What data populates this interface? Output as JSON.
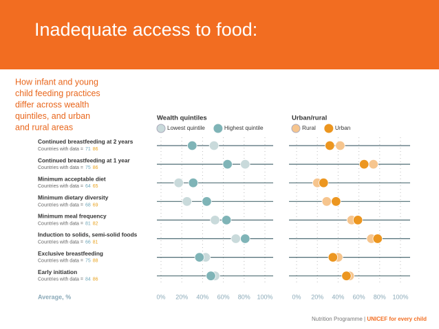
{
  "chart_data": {
    "type": "dot",
    "title": "Inadequate access to food:",
    "subtitle": [
      "How infant and young",
      "child feeding practices",
      "differ across wealth",
      "quintiles, and urban",
      "and rural areas"
    ],
    "categories": [
      "Continued breastfeeding at 2 years",
      "Continued breastfeeding at 1 year",
      "Minimum acceptable diet",
      "Minimum dietary diversity",
      "Minimum meal frequency",
      "Induction to solids, semi-solid foods",
      "Exclusive breastfeeding",
      "Early initiation"
    ],
    "countries_label": "Countries with data =",
    "countries": [
      [
        71,
        86
      ],
      [
        75,
        86
      ],
      [
        64,
        65
      ],
      [
        68,
        69
      ],
      [
        81,
        82
      ],
      [
        66,
        81
      ],
      [
        75,
        88
      ],
      [
        84,
        86
      ]
    ],
    "x_label": "Average, %",
    "panels": [
      {
        "title": "Wealth quintiles",
        "xlim": [
          0,
          100
        ],
        "xticks": [
          {
            "value": 0,
            "label": "0%"
          },
          {
            "value": 20,
            "label": "20%"
          },
          {
            "value": 40,
            "label": "40%"
          },
          {
            "value": 60,
            "label": "60%"
          },
          {
            "value": 80,
            "label": "80%"
          },
          {
            "value": 100,
            "label": "100%"
          }
        ],
        "series": [
          {
            "name": "Lowest quintile",
            "color": "#c9dadb",
            "values": [
              51,
              81,
              17,
              25,
              52,
              72,
              43,
              52
            ]
          },
          {
            "name": "Highest quintile",
            "color": "#7fb4b7",
            "values": [
              30,
              64,
              31,
              44,
              63,
              81,
              37,
              48
            ]
          }
        ]
      },
      {
        "title": "Urban/rural",
        "xlim": [
          0,
          100
        ],
        "xticks": [
          {
            "value": 0,
            "label": "0%"
          },
          {
            "value": 20,
            "label": "20%"
          },
          {
            "value": 40,
            "label": "40%"
          },
          {
            "value": 60,
            "label": "60%"
          },
          {
            "value": 80,
            "label": "80%"
          },
          {
            "value": 100,
            "label": "100%"
          }
        ],
        "series": [
          {
            "name": "Rural",
            "color": "#f6c58e",
            "values": [
              42,
              74,
              20,
              29,
              53,
              72,
              40,
              51
            ]
          },
          {
            "name": "Urban",
            "color": "#ec9620",
            "values": [
              32,
              65,
              26,
              38,
              59,
              78,
              35,
              48
            ]
          }
        ]
      }
    ],
    "footer": [
      "Nutrition Programme |",
      "UNICEF for every child"
    ]
  }
}
